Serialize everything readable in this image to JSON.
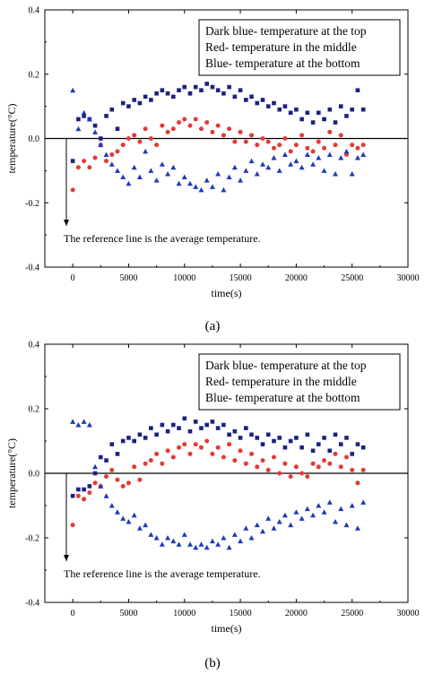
{
  "chart_data": [
    {
      "type": "scatter",
      "panel_label": "(a)",
      "xlabel": "time(s)",
      "ylabel": "temperature(°C)",
      "xlim": [
        -2500,
        30000
      ],
      "ylim": [
        -0.4,
        0.4
      ],
      "x_ticks": [
        "0",
        "5000",
        "10000",
        "15000",
        "20000",
        "25000",
        "30000"
      ],
      "y_ticks": [
        "0.4",
        "0.2",
        "0.0",
        "-0.2",
        "-0.4"
      ],
      "reference_line_y": 0.0,
      "legend_lines": [
        "Dark blue- temperature at the top",
        "Red- temperature in the middle",
        "Blue- temperature at the bottom"
      ],
      "note": "The reference line is the average temperature.",
      "series": [
        {
          "color": "#1a237e",
          "marker": "square",
          "x": [
            0,
            500,
            1000,
            1500,
            2000,
            2500,
            3000,
            3500,
            4000,
            4500,
            5000,
            5500,
            6000,
            6500,
            7000,
            7500,
            8000,
            8500,
            9000,
            9500,
            10000,
            10500,
            11000,
            11500,
            12000,
            12500,
            13000,
            13500,
            14000,
            14500,
            15000,
            15500,
            16000,
            16500,
            17000,
            17500,
            18000,
            18500,
            19000,
            19500,
            20000,
            20500,
            21000,
            21500,
            22000,
            22500,
            23000,
            23500,
            24000,
            24500,
            25000,
            25500,
            26000
          ],
          "y": [
            -0.07,
            0.06,
            0.07,
            0.06,
            0.04,
            0.0,
            0.07,
            0.09,
            0.03,
            0.11,
            0.1,
            0.12,
            0.11,
            0.13,
            0.12,
            0.14,
            0.15,
            0.14,
            0.13,
            0.15,
            0.16,
            0.14,
            0.16,
            0.15,
            0.17,
            0.16,
            0.15,
            0.14,
            0.16,
            0.13,
            0.15,
            0.12,
            0.13,
            0.11,
            0.12,
            0.1,
            0.11,
            0.09,
            0.1,
            0.08,
            0.09,
            0.06,
            0.08,
            0.05,
            0.08,
            0.06,
            0.09,
            0.05,
            0.1,
            0.07,
            0.09,
            0.15,
            0.09
          ]
        },
        {
          "color": "#e53935",
          "marker": "circle",
          "x": [
            0,
            500,
            1000,
            1500,
            2000,
            2500,
            3000,
            3500,
            4000,
            4500,
            5000,
            5500,
            6000,
            6500,
            7000,
            7500,
            8000,
            8500,
            9000,
            9500,
            10000,
            10500,
            11000,
            11500,
            12000,
            12500,
            13000,
            13500,
            14000,
            14500,
            15000,
            15500,
            16000,
            16500,
            17000,
            17500,
            18000,
            18500,
            19000,
            19500,
            20000,
            20500,
            21000,
            21500,
            22000,
            22500,
            23000,
            23500,
            24000,
            24500,
            25000,
            25500,
            26000
          ],
          "y": [
            -0.16,
            -0.09,
            -0.07,
            -0.09,
            -0.06,
            -0.02,
            -0.07,
            -0.05,
            -0.04,
            -0.02,
            0.0,
            0.01,
            -0.01,
            0.03,
            0.0,
            -0.02,
            0.04,
            0.02,
            0.03,
            0.05,
            0.06,
            0.04,
            0.06,
            0.03,
            0.05,
            0.02,
            0.04,
            0.01,
            0.03,
            -0.01,
            0.02,
            -0.01,
            0.01,
            -0.02,
            0.0,
            -0.01,
            -0.03,
            -0.02,
            0.0,
            -0.04,
            -0.02,
            0.01,
            -0.03,
            -0.04,
            -0.01,
            -0.03,
            0.02,
            -0.02,
            0.01,
            -0.05,
            -0.02,
            -0.03,
            -0.02
          ]
        },
        {
          "color": "#1e3ab8",
          "marker": "triangle",
          "x": [
            0,
            500,
            1000,
            1500,
            2000,
            2500,
            3000,
            3500,
            4000,
            4500,
            5000,
            5500,
            6000,
            6500,
            7000,
            7500,
            8000,
            8500,
            9000,
            9500,
            10000,
            10500,
            11000,
            11500,
            12000,
            12500,
            13000,
            13500,
            14000,
            14500,
            15000,
            15500,
            16000,
            16500,
            17000,
            17500,
            18000,
            18500,
            19000,
            19500,
            20000,
            20500,
            21000,
            21500,
            22000,
            22500,
            23000,
            23500,
            24000,
            24500,
            25000,
            25500,
            26000
          ],
          "y": [
            0.15,
            0.03,
            0.08,
            0.06,
            0.02,
            -0.02,
            -0.05,
            -0.08,
            -0.1,
            -0.12,
            -0.14,
            -0.09,
            -0.12,
            -0.04,
            -0.1,
            -0.13,
            -0.08,
            -0.11,
            -0.09,
            -0.14,
            -0.12,
            -0.14,
            -0.15,
            -0.16,
            -0.13,
            -0.15,
            -0.11,
            -0.16,
            -0.12,
            -0.09,
            -0.13,
            -0.1,
            -0.07,
            -0.11,
            -0.08,
            -0.09,
            -0.06,
            -0.1,
            -0.05,
            -0.08,
            -0.07,
            -0.09,
            -0.05,
            -0.08,
            -0.06,
            -0.1,
            -0.05,
            -0.11,
            -0.06,
            -0.04,
            -0.11,
            -0.06,
            -0.05
          ]
        }
      ]
    },
    {
      "type": "scatter",
      "panel_label": "(b)",
      "xlabel": "time(s)",
      "ylabel": "temperature(°C)",
      "xlim": [
        -2500,
        30000
      ],
      "ylim": [
        -0.4,
        0.4
      ],
      "x_ticks": [
        "0",
        "5000",
        "10000",
        "15000",
        "20000",
        "25000",
        "30000"
      ],
      "y_ticks": [
        "0.4",
        "0.2",
        "0.0",
        "-0.2",
        "-0.4"
      ],
      "reference_line_y": 0.0,
      "legend_lines": [
        "Dark blue- temperature at the top",
        "Red- temperature in the middle",
        "Blue- temperature at the bottom"
      ],
      "note": "The reference line is the average temperature.",
      "series": [
        {
          "color": "#1a237e",
          "marker": "square",
          "x": [
            0,
            500,
            1000,
            1500,
            2000,
            2500,
            3000,
            3500,
            4000,
            4500,
            5000,
            5500,
            6000,
            6500,
            7000,
            7500,
            8000,
            8500,
            9000,
            9500,
            10000,
            10500,
            11000,
            11500,
            12000,
            12500,
            13000,
            13500,
            14000,
            14500,
            15000,
            15500,
            16000,
            16500,
            17000,
            17500,
            18000,
            18500,
            19000,
            19500,
            20000,
            20500,
            21000,
            21500,
            22000,
            22500,
            23000,
            23500,
            24000,
            24500,
            25000,
            25500,
            26000
          ],
          "y": [
            -0.07,
            -0.05,
            -0.05,
            -0.04,
            0.0,
            0.05,
            0.04,
            0.09,
            0.06,
            0.1,
            0.11,
            0.1,
            0.12,
            0.11,
            0.14,
            0.12,
            0.15,
            0.13,
            0.15,
            0.14,
            0.17,
            0.13,
            0.16,
            0.14,
            0.15,
            0.16,
            0.14,
            0.15,
            0.12,
            0.13,
            0.11,
            0.14,
            0.12,
            0.11,
            0.09,
            0.12,
            0.1,
            0.11,
            0.08,
            0.1,
            0.11,
            0.08,
            0.12,
            0.07,
            0.09,
            0.11,
            0.07,
            0.12,
            0.09,
            0.11,
            0.06,
            0.09,
            0.08
          ]
        },
        {
          "color": "#e53935",
          "marker": "circle",
          "x": [
            0,
            500,
            1000,
            1500,
            2000,
            2500,
            3000,
            3500,
            4000,
            4500,
            5000,
            5500,
            6000,
            6500,
            7000,
            7500,
            8000,
            8500,
            9000,
            9500,
            10000,
            10500,
            11000,
            11500,
            12000,
            12500,
            13000,
            13500,
            14000,
            14500,
            15000,
            15500,
            16000,
            16500,
            17000,
            17500,
            18000,
            18500,
            19000,
            19500,
            20000,
            20500,
            21000,
            21500,
            22000,
            22500,
            23000,
            23500,
            24000,
            24500,
            25000,
            25500,
            26000
          ],
          "y": [
            -0.16,
            -0.07,
            -0.08,
            -0.06,
            -0.03,
            -0.04,
            -0.01,
            0.01,
            -0.02,
            -0.04,
            -0.03,
            0.02,
            -0.02,
            0.03,
            0.04,
            0.06,
            0.03,
            0.07,
            0.05,
            0.08,
            0.09,
            0.06,
            0.09,
            0.08,
            0.1,
            0.06,
            0.08,
            0.05,
            0.09,
            0.04,
            0.07,
            0.03,
            0.06,
            0.02,
            0.04,
            0.01,
            0.05,
            0.0,
            0.03,
            -0.01,
            0.02,
            0.0,
            -0.01,
            0.03,
            0.02,
            0.04,
            0.03,
            0.06,
            0.02,
            0.05,
            0.01,
            -0.03,
            0.01
          ]
        },
        {
          "color": "#1e3ab8",
          "marker": "triangle",
          "x": [
            0,
            500,
            1000,
            1500,
            2000,
            2500,
            3000,
            3500,
            4000,
            4500,
            5000,
            5500,
            6000,
            6500,
            7000,
            7500,
            8000,
            8500,
            9000,
            9500,
            10000,
            10500,
            11000,
            11500,
            12000,
            12500,
            13000,
            13500,
            14000,
            14500,
            15000,
            15500,
            16000,
            16500,
            17000,
            17500,
            18000,
            18500,
            19000,
            19500,
            20000,
            20500,
            21000,
            21500,
            22000,
            22500,
            23000,
            23500,
            24000,
            24500,
            25000,
            25500,
            26000
          ],
          "y": [
            0.16,
            0.15,
            0.16,
            0.15,
            0.02,
            -0.04,
            -0.07,
            -0.1,
            -0.12,
            -0.14,
            -0.15,
            -0.13,
            -0.17,
            -0.16,
            -0.19,
            -0.2,
            -0.22,
            -0.2,
            -0.21,
            -0.22,
            -0.19,
            -0.22,
            -0.23,
            -0.22,
            -0.23,
            -0.21,
            -0.22,
            -0.2,
            -0.23,
            -0.19,
            -0.21,
            -0.17,
            -0.2,
            -0.16,
            -0.18,
            -0.14,
            -0.17,
            -0.15,
            -0.13,
            -0.16,
            -0.12,
            -0.14,
            -0.11,
            -0.13,
            -0.1,
            -0.12,
            -0.09,
            -0.15,
            -0.11,
            -0.16,
            -0.1,
            -0.17,
            -0.09
          ]
        }
      ]
    }
  ]
}
